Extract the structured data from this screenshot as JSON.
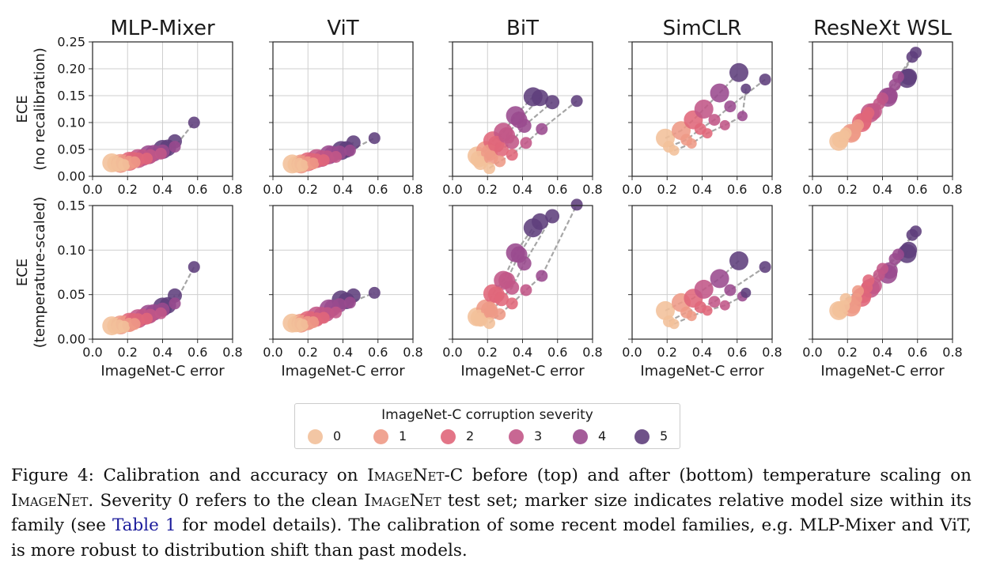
{
  "figure": {
    "panel_titles": [
      "MLP-Mixer",
      "ViT",
      "BiT",
      "SimCLR",
      "ResNeXt WSL"
    ],
    "row_ylabels": [
      [
        "ECE",
        "(no recalibration)"
      ],
      [
        "ECE",
        "(temperature-scaled)"
      ]
    ],
    "xlabel": "ImageNet-C error",
    "x_ticks": [
      "0.0",
      "0.2",
      "0.4",
      "0.6",
      "0.8"
    ],
    "y_ticks_top": [
      "0.00",
      "0.05",
      "0.10",
      "0.15",
      "0.20",
      "0.25"
    ],
    "y_ticks_bottom": [
      "0.00",
      "0.05",
      "0.10",
      "0.15"
    ]
  },
  "colors": {
    "severity": [
      "#f2c09a",
      "#ee9a86",
      "#e0667a",
      "#c25787",
      "#9a4a8e",
      "#5f3f7c"
    ],
    "connector": "#a6a6a6",
    "grid": "#cfcfcf"
  },
  "chart_data": {
    "type": "scatter",
    "xlabel": "ImageNet-C error",
    "xlim": [
      0,
      0.8
    ],
    "ylim_top": [
      0,
      0.25
    ],
    "ylim_bottom": [
      0,
      0.15
    ],
    "legend_title": "ImageNet-C corruption severity",
    "legend_labels": [
      "0",
      "1",
      "2",
      "3",
      "4",
      "5"
    ],
    "note": "Each family has several models (marker size = relative model size). Each model has one point per severity 0-5, connected by a dashed grey line.",
    "families": [
      {
        "name": "MLP-Mixer",
        "models": [
          {
            "size": 4,
            "x": [
              0.11,
              0.16,
              0.21,
              0.26,
              0.32,
              0.4
            ],
            "top": [
              0.025,
              0.024,
              0.028,
              0.033,
              0.04,
              0.05
            ],
            "bottom": [
              0.015,
              0.016,
              0.019,
              0.023,
              0.028,
              0.036
            ]
          },
          {
            "size": 3,
            "x": [
              0.13,
              0.18,
              0.23,
              0.29,
              0.35,
              0.43
            ],
            "top": [
              0.024,
              0.025,
              0.03,
              0.035,
              0.043,
              0.053
            ],
            "bottom": [
              0.015,
              0.017,
              0.02,
              0.025,
              0.03,
              0.038
            ]
          },
          {
            "size": 2,
            "x": [
              0.15,
              0.21,
              0.26,
              0.33,
              0.4,
              0.47
            ],
            "top": [
              0.022,
              0.025,
              0.031,
              0.037,
              0.046,
              0.065
            ],
            "bottom": [
              0.014,
              0.016,
              0.021,
              0.026,
              0.033,
              0.049
            ]
          },
          {
            "size": 1,
            "x": [
              0.18,
              0.24,
              0.31,
              0.39,
              0.47,
              0.58
            ],
            "top": [
              0.021,
              0.026,
              0.033,
              0.042,
              0.055,
              0.1
            ],
            "bottom": [
              0.014,
              0.017,
              0.023,
              0.029,
              0.04,
              0.081
            ]
          }
        ]
      },
      {
        "name": "ViT",
        "models": [
          {
            "size": 4,
            "x": [
              0.11,
              0.16,
              0.2,
              0.25,
              0.32,
              0.39
            ],
            "top": [
              0.023,
              0.023,
              0.027,
              0.033,
              0.04,
              0.048
            ],
            "bottom": [
              0.018,
              0.018,
              0.021,
              0.026,
              0.034,
              0.044
            ]
          },
          {
            "size": 3,
            "x": [
              0.13,
              0.17,
              0.22,
              0.28,
              0.34,
              0.42
            ],
            "top": [
              0.022,
              0.024,
              0.028,
              0.033,
              0.041,
              0.05
            ],
            "bottom": [
              0.017,
              0.018,
              0.022,
              0.027,
              0.035,
              0.043
            ]
          },
          {
            "size": 2,
            "x": [
              0.15,
              0.2,
              0.25,
              0.31,
              0.38,
              0.46
            ],
            "top": [
              0.021,
              0.024,
              0.029,
              0.035,
              0.044,
              0.063
            ],
            "bottom": [
              0.016,
              0.018,
              0.022,
              0.028,
              0.038,
              0.049
            ]
          },
          {
            "size": 1,
            "x": [
              0.17,
              0.23,
              0.29,
              0.36,
              0.44,
              0.58
            ],
            "top": [
              0.02,
              0.024,
              0.03,
              0.036,
              0.048,
              0.071
            ],
            "bottom": [
              0.016,
              0.019,
              0.024,
              0.03,
              0.041,
              0.052
            ]
          }
        ]
      },
      {
        "name": "BiT",
        "models": [
          {
            "size": 4,
            "x": [
              0.14,
              0.19,
              0.23,
              0.29,
              0.36,
              0.46
            ],
            "top": [
              0.038,
              0.048,
              0.066,
              0.082,
              0.113,
              0.148
            ],
            "bottom": [
              0.025,
              0.034,
              0.051,
              0.066,
              0.097,
              0.125
            ]
          },
          {
            "size": 3,
            "x": [
              0.15,
              0.21,
              0.25,
              0.31,
              0.38,
              0.5
            ],
            "top": [
              0.032,
              0.044,
              0.06,
              0.076,
              0.105,
              0.146
            ],
            "bottom": [
              0.024,
              0.033,
              0.05,
              0.066,
              0.095,
              0.132
            ]
          },
          {
            "size": 2,
            "x": [
              0.16,
              0.22,
              0.28,
              0.34,
              0.41,
              0.57
            ],
            "top": [
              0.025,
              0.035,
              0.05,
              0.064,
              0.094,
              0.138
            ],
            "bottom": [
              0.022,
              0.03,
              0.045,
              0.058,
              0.085,
              0.138
            ]
          },
          {
            "size": 1,
            "x": [
              0.21,
              0.27,
              0.34,
              0.42,
              0.51,
              0.71
            ],
            "top": [
              0.015,
              0.028,
              0.04,
              0.062,
              0.088,
              0.14
            ],
            "bottom": [
              0.018,
              0.028,
              0.04,
              0.055,
              0.071,
              0.151
            ]
          }
        ]
      },
      {
        "name": "SimCLR",
        "models": [
          {
            "size": 4,
            "x": [
              0.19,
              0.28,
              0.35,
              0.41,
              0.5,
              0.61
            ],
            "top": [
              0.071,
              0.085,
              0.105,
              0.125,
              0.155,
              0.193
            ],
            "bottom": [
              0.032,
              0.041,
              0.046,
              0.056,
              0.068,
              0.088
            ]
          },
          {
            "size": 1,
            "x": [
              0.21,
              0.31,
              0.39,
              0.47,
              0.56,
              0.76
            ],
            "top": [
              0.055,
              0.068,
              0.088,
              0.105,
              0.13,
              0.18
            ],
            "bottom": [
              0.02,
              0.03,
              0.036,
              0.042,
              0.055,
              0.081
            ]
          },
          {
            "size": 0,
            "x": [
              0.24,
              0.34,
              0.43,
              0.53,
              0.63,
              0.65
            ],
            "top": [
              0.048,
              0.061,
              0.08,
              0.095,
              0.112,
              0.163
            ],
            "bottom": [
              0.017,
              0.026,
              0.032,
              0.038,
              0.048,
              0.052
            ]
          }
        ]
      },
      {
        "name": "ResNeXt WSL",
        "models": [
          {
            "size": 4,
            "x": [
              0.15,
              0.22,
              0.28,
              0.33,
              0.43,
              0.54
            ],
            "top": [
              0.065,
              0.08,
              0.1,
              0.118,
              0.147,
              0.182
            ],
            "bottom": [
              0.032,
              0.036,
              0.047,
              0.057,
              0.073,
              0.096
            ]
          },
          {
            "size": 3,
            "x": [
              0.16,
              0.23,
              0.29,
              0.35,
              0.44,
              0.55
            ],
            "top": [
              0.068,
              0.081,
              0.102,
              0.121,
              0.15,
              0.185
            ],
            "bottom": [
              0.033,
              0.038,
              0.05,
              0.06,
              0.077,
              0.1
            ]
          },
          {
            "size": 1,
            "x": [
              0.18,
              0.25,
              0.31,
              0.38,
              0.47,
              0.59
            ],
            "top": [
              0.075,
              0.09,
              0.112,
              0.135,
              0.17,
              0.23
            ],
            "bottom": [
              0.037,
              0.045,
              0.058,
              0.072,
              0.09,
              0.121
            ]
          },
          {
            "size": 1,
            "x": [
              0.19,
              0.26,
              0.32,
              0.4,
              0.49,
              0.57
            ],
            "top": [
              0.08,
              0.095,
              0.118,
              0.145,
              0.185,
              0.222
            ],
            "bottom": [
              0.045,
              0.054,
              0.066,
              0.079,
              0.095,
              0.117
            ]
          }
        ]
      }
    ]
  },
  "legend": {
    "title": "ImageNet-C corruption severity",
    "labels": [
      "0",
      "1",
      "2",
      "3",
      "4",
      "5"
    ]
  },
  "caption": {
    "fig_label": "Figure 4:",
    "t1": " Calibration and accuracy on ",
    "sc1": "ImageNet-C",
    "t2": " before (top) and after (bottom) temperature scaling on ",
    "sc2": "ImageNet",
    "t3": ". Severity 0 refers to the clean ",
    "sc3": "ImageNet",
    "t4": " test set; marker size indicates relative model size within its family (see ",
    "ref": "Table 1",
    "t5": " for model details). The calibration of some recent model families, e.g. MLP-Mixer and ViT, is more robust to distribution shift than past models."
  }
}
